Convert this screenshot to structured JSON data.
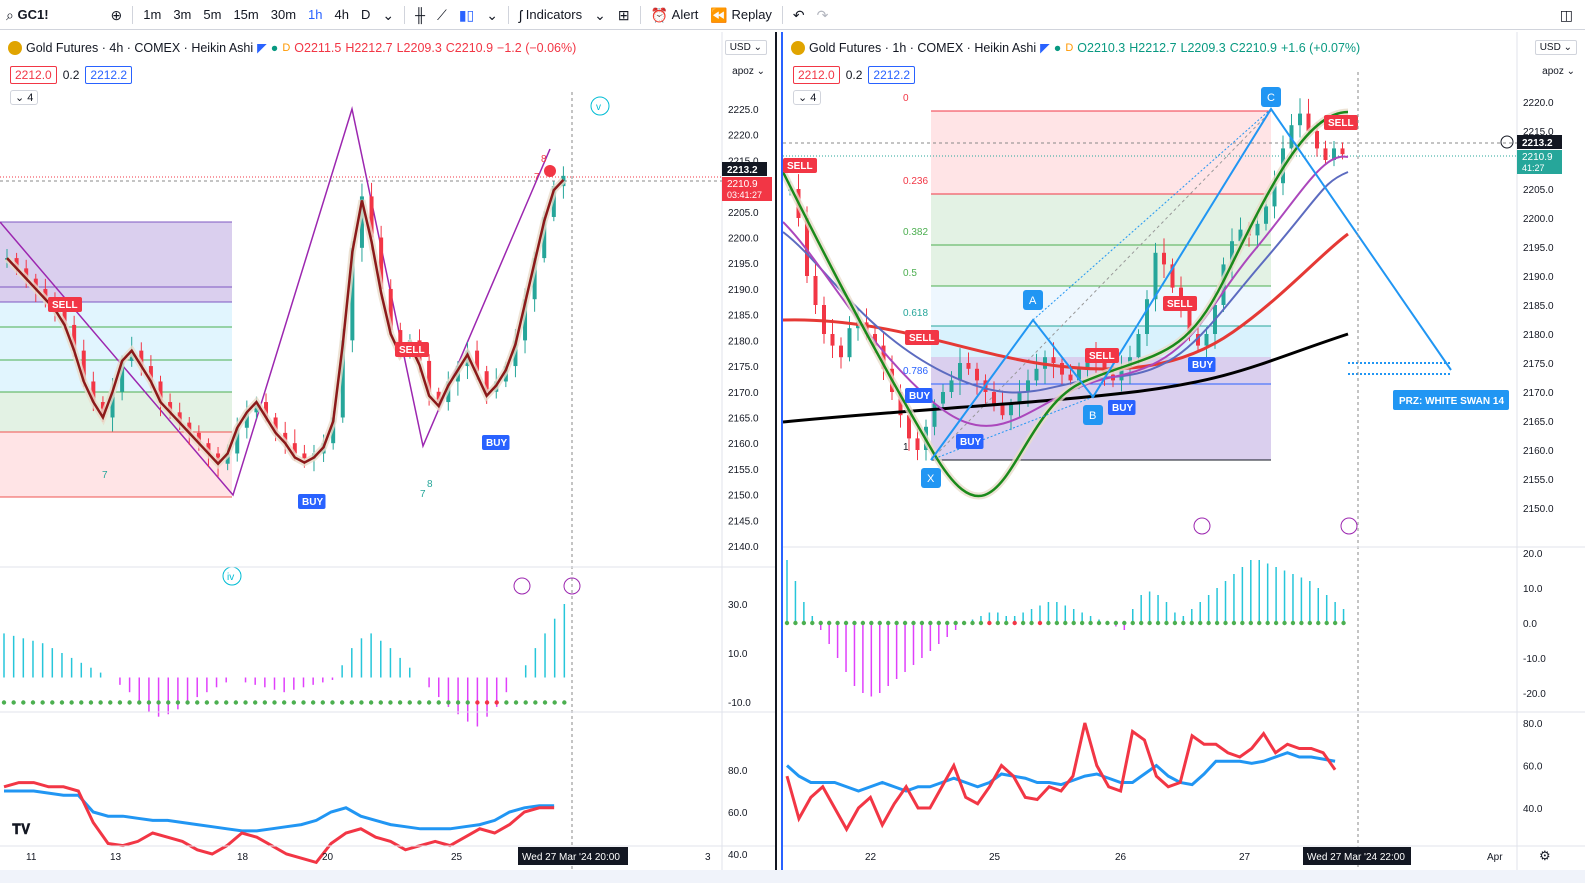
{
  "toolbar": {
    "symbol": "GC1!",
    "timeframes": [
      "1m",
      "3m",
      "5m",
      "15m",
      "30m",
      "1h",
      "4h",
      "D"
    ],
    "active_timeframe": "1h",
    "indicators_label": "Indicators",
    "alert_label": "Alert",
    "replay_label": "Replay"
  },
  "left": {
    "title": "Gold Futures · 4h · COMEX · Heikin Ashi",
    "flag": "D",
    "ohlc": {
      "o": "O2211.5",
      "h": "H2212.7",
      "l": "L2209.3",
      "c": "C2210.9",
      "chg": "−1.2 (−0.06%)"
    },
    "sell_price": "2212.0",
    "spread": "0.2",
    "buy_price": "2212.2",
    "indicator_count": "4",
    "currency": "USD",
    "scale_mode": "apoz",
    "price_ticks": [
      "2225.0",
      "2220.0",
      "2215.0",
      "2210.0",
      "2205.0",
      "2200.0",
      "2195.0",
      "2190.0",
      "2185.0",
      "2180.0",
      "2175.0",
      "2170.0",
      "2165.0",
      "2160.0",
      "2155.0",
      "2150.0",
      "2145.0",
      "2140.0"
    ],
    "last_price": "2213.2",
    "current_price": "2210.9",
    "countdown": "03:41:27",
    "osc_ticks": [
      "30.0",
      "10.0",
      "-10.0"
    ],
    "rsi_ticks": [
      "80.0",
      "60.0",
      "40.0"
    ],
    "date_ticks": [
      "11",
      "13",
      "18",
      "20",
      "25",
      "3"
    ],
    "crosshair_date": "Wed 27 Mar '24",
    "crosshair_time": "20:00",
    "labels": {
      "sell1": "SELL",
      "sell2": "SELL",
      "buy1": "BUY",
      "buy2": "BUY",
      "wave_iv": "iv",
      "wave_v": "v",
      "n7a": "7",
      "n7b": "7",
      "n8": "8",
      "n7c": "7",
      "n8b": "8"
    }
  },
  "right": {
    "title": "Gold Futures · 1h · COMEX · Heikin Ashi",
    "flag": "D",
    "ohlc": {
      "o": "O2210.3",
      "h": "H2212.7",
      "l": "L2209.3",
      "c": "C2210.9",
      "chg": "+1.6 (+0.07%)"
    },
    "sell_price": "2212.0",
    "spread": "0.2",
    "buy_price": "2212.2",
    "indicator_count": "4",
    "currency": "USD",
    "scale_mode": "apoz",
    "price_ticks": [
      "2220.0",
      "2215.0",
      "2210.0",
      "2205.0",
      "2200.0",
      "2195.0",
      "2190.0",
      "2185.0",
      "2180.0",
      "2175.0",
      "2170.0",
      "2165.0",
      "2160.0",
      "2155.0",
      "2150.0"
    ],
    "last_price": "2213.2",
    "current_price": "2210.9",
    "countdown": "41:27",
    "osc_ticks": [
      "20.0",
      "10.0",
      "0.0",
      "-10.0",
      "-20.0"
    ],
    "rsi_ticks": [
      "80.0",
      "60.0",
      "40.0"
    ],
    "date_ticks": [
      "22",
      "25",
      "26",
      "27",
      "Apr"
    ],
    "crosshair_date": "Wed 27 Mar '24",
    "crosshair_time": "22:00",
    "fib_levels": [
      "0",
      "0.236",
      "0.382",
      "0.5",
      "0.618",
      "0.786",
      "1"
    ],
    "pattern_points": [
      "X",
      "A",
      "B",
      "C"
    ],
    "prz_label": "PRZ: WHITE SWAN 14",
    "signals": {
      "sell1": "SELL",
      "sell2": "SELL",
      "sell3": "SELL",
      "sell4": "SELL",
      "sell5": "SELL",
      "buy1": "BUY",
      "buy2": "BUY",
      "buy3": "BUY",
      "buy4": "BUY"
    }
  },
  "colors": {
    "bull": "#26a69a",
    "bear": "#f23645",
    "blue": "#2962ff",
    "purple": "#9c27b0",
    "green": "#1b8a1b",
    "red": "#e53935"
  }
}
